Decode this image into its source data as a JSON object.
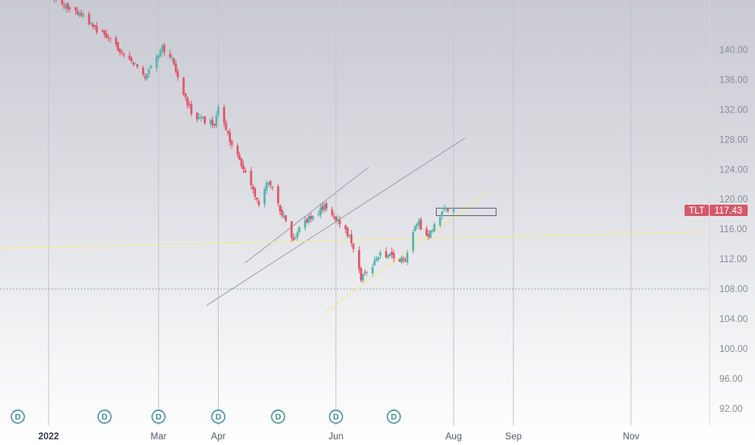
{
  "chart_data": {
    "type": "candlestick",
    "symbol": "TLT",
    "last_price": "117.43",
    "colors": {
      "up": "#58b5ad",
      "down": "#e0566a",
      "badge": "#3d8a97",
      "price_label": "#d4596b",
      "trendline_gray": "#9aa0a8",
      "trendline_yellow": "#f1e7a0"
    },
    "ylim": [
      89.5,
      146
    ],
    "y_ticks": [
      "140.00",
      "136.00",
      "132.00",
      "128.00",
      "124.00",
      "120.00",
      "116.00",
      "112.00",
      "108.00",
      "104.00",
      "100.00",
      "96.00",
      "92.00"
    ],
    "x_ticks": [
      {
        "label": "2022",
        "date": "2022-01-03",
        "bold": true
      },
      {
        "label": "Mar",
        "date": "2022-03-01"
      },
      {
        "label": "Apr",
        "date": "2022-04-01"
      },
      {
        "label": "Jun",
        "date": "2022-06-01"
      },
      {
        "label": "Aug",
        "date": "2022-08-01"
      },
      {
        "label": "Sep",
        "date": "2022-09-01"
      },
      {
        "label": "Nov",
        "date": "2022-11-01"
      }
    ],
    "dividend_markers": [
      "D",
      "D",
      "D",
      "D",
      "D",
      "D",
      "D"
    ],
    "dividend_dates": [
      "2022-01-03",
      "2022-02-01",
      "2022-03-01",
      "2022-04-01",
      "2022-05-02",
      "2022-06-01",
      "2022-07-01"
    ],
    "path_key_points": [
      [
        "2022-01-03",
        147.5
      ],
      [
        "2022-01-20",
        144.5
      ],
      [
        "2022-02-03",
        141.5
      ],
      [
        "2022-02-22",
        136.5
      ],
      [
        "2022-03-03",
        140.5
      ],
      [
        "2022-03-08",
        138.5
      ],
      [
        "2022-03-18",
        131.5
      ],
      [
        "2022-03-30",
        130.0
      ],
      [
        "2022-04-01",
        132.0
      ],
      [
        "2022-04-07",
        128.0
      ],
      [
        "2022-04-22",
        119.5
      ],
      [
        "2022-04-27",
        122.5
      ],
      [
        "2022-05-06",
        117.0
      ],
      [
        "2022-05-09",
        114.5
      ],
      [
        "2022-05-16",
        117.0
      ],
      [
        "2022-05-26",
        119.0
      ],
      [
        "2022-06-01",
        117.2
      ],
      [
        "2022-06-08",
        115.0
      ],
      [
        "2022-06-14",
        109.5
      ],
      [
        "2022-06-24",
        112.5
      ],
      [
        "2022-07-07",
        112.0
      ],
      [
        "2022-07-13",
        117.0
      ],
      [
        "2022-07-19",
        115.0
      ],
      [
        "2022-07-28",
        119.0
      ],
      [
        "2022-08-01",
        118.5
      ]
    ],
    "volatility": 0.55,
    "trendlines": [
      {
        "color": "gray",
        "from": [
          "2022-04-15",
          111.5
        ],
        "to": [
          "2022-06-18",
          124.3
        ]
      },
      {
        "color": "gray",
        "from": [
          "2022-03-26",
          105.8
        ],
        "to": [
          "2022-08-07",
          128.2
        ]
      },
      {
        "color": "yellow",
        "from": [
          "2022-05-26",
          104.8
        ],
        "to": [
          "2022-08-20",
          121.2
        ]
      },
      {
        "color": "yellow",
        "from": [
          "2021-12-01",
          113.4
        ],
        "to": [
          "2022-12-08",
          115.6
        ]
      }
    ],
    "rectangle": {
      "x_from": "2022-07-23",
      "x_to": "2022-08-23",
      "y_from": 117.8,
      "y_to": 118.8
    },
    "dotted_level": 108.0
  }
}
